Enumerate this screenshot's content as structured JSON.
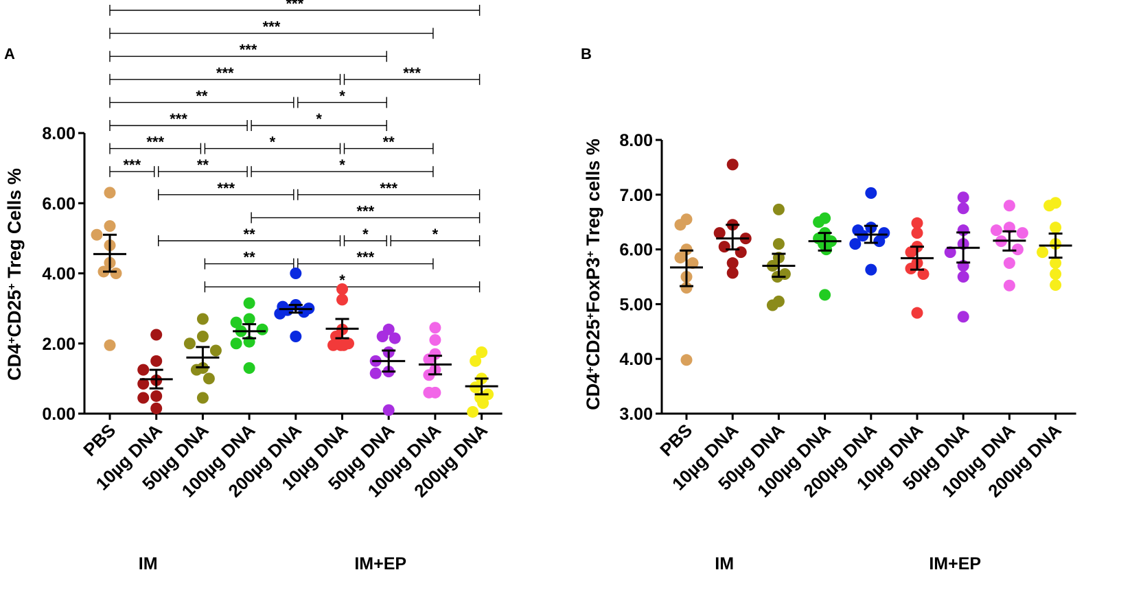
{
  "chart_data": [
    {
      "panel": "A",
      "type": "scatter",
      "subtype": "dot plot with mean and SEM",
      "ylabel": {
        "main": "CD4",
        "sup1": "+",
        "mid": "CD25",
        "sup2": "+",
        "tail": " Treg Cells %"
      },
      "ylim": [
        0,
        8
      ],
      "yticks": [
        "0.00",
        "2.00",
        "4.00",
        "6.00",
        "8.00"
      ],
      "categories": [
        "PBS",
        "10µg DNA",
        "50µg DNA",
        "100µg DNA",
        "200µg DNA",
        "10µg DNA",
        "50µg DNA",
        "100µg DNA",
        "200µg DNA"
      ],
      "route_labels": [
        {
          "text": "IM",
          "under": 1
        },
        {
          "text": "IM+EP",
          "under": 6
        }
      ],
      "colors": [
        "#D9A05B",
        "#A31515",
        "#8B8B1A",
        "#22CC22",
        "#0A2AE0",
        "#F23A3A",
        "#A82EE0",
        "#F266E8",
        "#F7EE1A"
      ],
      "series": [
        {
          "name": "PBS",
          "points": [
            6.3,
            5.35,
            5.1,
            4.8,
            4.3,
            4.05,
            4.0,
            1.95
          ],
          "mean": 4.55,
          "sem_low": 4.05,
          "sem_high": 5.1
        },
        {
          "name": "IM 10µg DNA",
          "points": [
            2.25,
            1.5,
            1.25,
            0.95,
            0.85,
            0.5,
            0.45,
            0.15
          ],
          "mean": 0.98,
          "sem_low": 0.72,
          "sem_high": 1.25
        },
        {
          "name": "IM 50µg DNA",
          "points": [
            2.7,
            2.2,
            2.0,
            1.8,
            1.3,
            1.25,
            1.0,
            0.45
          ],
          "mean": 1.6,
          "sem_low": 1.32,
          "sem_high": 1.9
        },
        {
          "name": "IM 100µg DNA",
          "points": [
            3.15,
            2.7,
            2.6,
            2.4,
            2.35,
            2.05,
            2.0,
            1.3
          ],
          "mean": 2.35,
          "sem_low": 2.15,
          "sem_high": 2.55
        },
        {
          "name": "IM 200µg DNA",
          "points": [
            4.0,
            3.1,
            3.05,
            3.0,
            2.95,
            2.9,
            2.85,
            2.2
          ],
          "mean": 2.98,
          "sem_low": 2.88,
          "sem_high": 3.1
        },
        {
          "name": "IM+EP 10µg DNA",
          "points": [
            3.55,
            3.25,
            2.4,
            2.2,
            2.0,
            1.95,
            1.95,
            1.95
          ],
          "mean": 2.42,
          "sem_low": 2.15,
          "sem_high": 2.7
        },
        {
          "name": "IM+EP 50µg DNA",
          "points": [
            2.4,
            2.2,
            2.15,
            1.75,
            1.5,
            1.2,
            1.15,
            0.1
          ],
          "mean": 1.5,
          "sem_low": 1.2,
          "sem_high": 1.8
        },
        {
          "name": "IM+EP 100µg DNA",
          "points": [
            2.45,
            2.1,
            1.7,
            1.55,
            1.25,
            1.1,
            0.6,
            0.6
          ],
          "mean": 1.4,
          "sem_low": 1.12,
          "sem_high": 1.65
        },
        {
          "name": "IM+EP 200µg DNA",
          "points": [
            1.75,
            1.5,
            1.0,
            0.75,
            0.55,
            0.45,
            0.3,
            0.05
          ],
          "mean": 0.78,
          "sem_low": 0.55,
          "sem_high": 1.0
        }
      ],
      "significance": [
        {
          "from": 0,
          "to": 8,
          "label": "***"
        },
        {
          "from": 0,
          "to": 7,
          "label": "***"
        },
        {
          "from": 0,
          "to": 6,
          "label": "***"
        },
        {
          "from": 0,
          "to": 5,
          "label": "***"
        },
        {
          "from": 5,
          "to": 8,
          "label": "***"
        },
        {
          "from": 0,
          "to": 4,
          "label": "**"
        },
        {
          "from": 4,
          "to": 6,
          "label": "*"
        },
        {
          "from": 0,
          "to": 3,
          "label": "***"
        },
        {
          "from": 3,
          "to": 6,
          "label": "*"
        },
        {
          "from": 0,
          "to": 2,
          "label": "***"
        },
        {
          "from": 2,
          "to": 5,
          "label": "*"
        },
        {
          "from": 5,
          "to": 7,
          "label": "**"
        },
        {
          "from": 0,
          "to": 1,
          "label": "***"
        },
        {
          "from": 1,
          "to": 3,
          "label": "**"
        },
        {
          "from": 3,
          "to": 7,
          "label": "*"
        },
        {
          "from": 1,
          "to": 4,
          "label": "***"
        },
        {
          "from": 4,
          "to": 8,
          "label": "***"
        },
        {
          "from": 3,
          "to": 8,
          "label": "***"
        },
        {
          "from": 1,
          "to": 5,
          "label": "**"
        },
        {
          "from": 5,
          "to": 6,
          "label": "*"
        },
        {
          "from": 6,
          "to": 8,
          "label": "*"
        },
        {
          "from": 2,
          "to": 4,
          "label": "**"
        },
        {
          "from": 4,
          "to": 7,
          "label": "***"
        },
        {
          "from": 2,
          "to": 8,
          "label": "*"
        }
      ]
    },
    {
      "panel": "B",
      "type": "scatter",
      "subtype": "dot plot with mean and SEM",
      "ylabel": {
        "main": "CD4",
        "sup1": "+",
        "mid": "CD25",
        "sup2": "+",
        "mid2": "FoxP3",
        "sup3": "+",
        "tail": " Treg cells %"
      },
      "ylim": [
        3,
        8
      ],
      "yticks": [
        "3.00",
        "4.00",
        "5.00",
        "6.00",
        "7.00",
        "8.00"
      ],
      "categories": [
        "PBS",
        "10µg DNA",
        "50µg DNA",
        "100µg DNA",
        "200µg DNA",
        "10µg DNA",
        "50µg DNA",
        "100µg DNA",
        "200µg DNA"
      ],
      "route_labels": [
        {
          "text": "IM",
          "under": 1
        },
        {
          "text": "IM+EP",
          "under": 6
        }
      ],
      "colors": [
        "#D9A05B",
        "#A31515",
        "#8B8B1A",
        "#22CC22",
        "#0A2AE0",
        "#F23A3A",
        "#A82EE0",
        "#F266E8",
        "#F7EE1A"
      ],
      "series": [
        {
          "name": "PBS",
          "points": [
            6.55,
            6.45,
            6.0,
            5.85,
            5.75,
            5.5,
            5.3,
            3.98
          ],
          "mean": 5.67,
          "sem_low": 5.33,
          "sem_high": 5.98
        },
        {
          "name": "IM 10µg DNA",
          "points": [
            7.55,
            6.45,
            6.3,
            6.2,
            6.05,
            5.95,
            5.75,
            5.57
          ],
          "mean": 6.2,
          "sem_low": 6.0,
          "sem_high": 6.45
        },
        {
          "name": "IM 50µg DNA",
          "points": [
            6.73,
            6.1,
            5.85,
            5.7,
            5.55,
            5.5,
            5.05,
            4.98
          ],
          "mean": 5.7,
          "sem_low": 5.5,
          "sem_high": 5.92
        },
        {
          "name": "IM 100µg DNA",
          "points": [
            6.57,
            6.5,
            6.3,
            6.2,
            6.15,
            6.1,
            6.0,
            5.17
          ],
          "mean": 6.15,
          "sem_low": 5.98,
          "sem_high": 6.3
        },
        {
          "name": "IM 200µg DNA",
          "points": [
            7.03,
            6.4,
            6.35,
            6.3,
            6.25,
            6.15,
            6.1,
            5.63
          ],
          "mean": 6.27,
          "sem_low": 6.12,
          "sem_high": 6.43
        },
        {
          "name": "IM+EP 10µg DNA",
          "points": [
            6.48,
            6.3,
            6.05,
            5.95,
            5.75,
            5.65,
            5.55,
            4.84
          ],
          "mean": 5.84,
          "sem_low": 5.63,
          "sem_high": 6.05
        },
        {
          "name": "IM+EP 50µg DNA",
          "points": [
            6.95,
            6.75,
            6.35,
            6.1,
            5.95,
            5.7,
            5.5,
            4.77
          ],
          "mean": 6.03,
          "sem_low": 5.76,
          "sem_high": 6.31
        },
        {
          "name": "IM+EP 100µg DNA",
          "points": [
            6.8,
            6.4,
            6.35,
            6.3,
            6.15,
            6.0,
            5.75,
            5.34
          ],
          "mean": 6.16,
          "sem_low": 5.98,
          "sem_high": 6.33
        },
        {
          "name": "IM+EP 200µg DNA",
          "points": [
            6.85,
            6.8,
            6.4,
            6.1,
            5.95,
            5.75,
            5.55,
            5.35
          ],
          "mean": 6.07,
          "sem_low": 5.85,
          "sem_high": 6.29
        }
      ],
      "significance": []
    }
  ]
}
